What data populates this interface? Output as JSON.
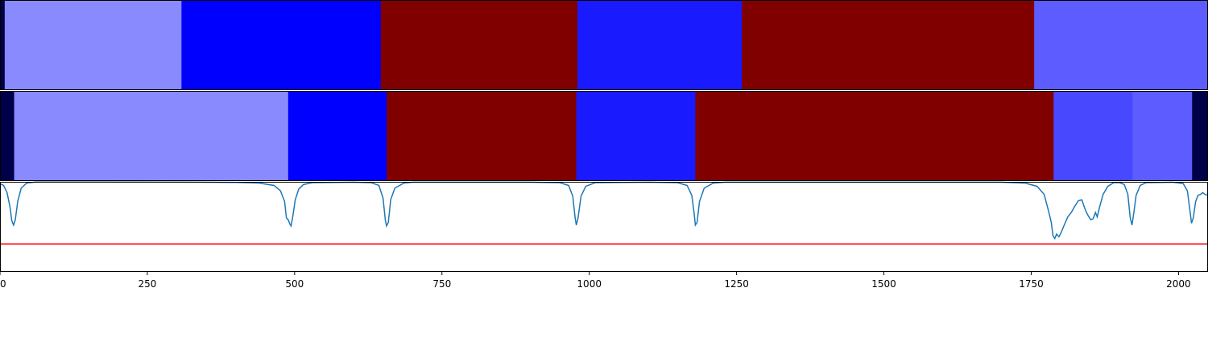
{
  "chart_data": [
    {
      "type": "heatmap",
      "panel": "top-segmentation",
      "xlim": [
        0,
        2050
      ],
      "segments": [
        {
          "start": 0,
          "end": 8,
          "color": "#000048"
        },
        {
          "start": 8,
          "end": 308,
          "color": "#8a8aff"
        },
        {
          "start": 308,
          "end": 646,
          "color": "#0000ff"
        },
        {
          "start": 646,
          "end": 980,
          "color": "#800000"
        },
        {
          "start": 980,
          "end": 1259,
          "color": "#1a1aff"
        },
        {
          "start": 1259,
          "end": 1755,
          "color": "#800000"
        },
        {
          "start": 1755,
          "end": 2050,
          "color": "#5c5cff"
        }
      ]
    },
    {
      "type": "heatmap",
      "panel": "middle-segmentation",
      "xlim": [
        0,
        2050
      ],
      "segments": [
        {
          "start": 0,
          "end": 24,
          "color": "#000048"
        },
        {
          "start": 24,
          "end": 489,
          "color": "#8a8aff"
        },
        {
          "start": 489,
          "end": 656,
          "color": "#0000ff"
        },
        {
          "start": 656,
          "end": 978,
          "color": "#800000"
        },
        {
          "start": 978,
          "end": 1180,
          "color": "#1a1aff"
        },
        {
          "start": 1180,
          "end": 1788,
          "color": "#800000"
        },
        {
          "start": 1788,
          "end": 1922,
          "color": "#4848ff"
        },
        {
          "start": 1922,
          "end": 2023,
          "color": "#5c5cff"
        },
        {
          "start": 2023,
          "end": 2050,
          "color": "#000048"
        }
      ]
    },
    {
      "type": "line",
      "panel": "boundary-score",
      "xlim": [
        0,
        2050
      ],
      "ylim": [
        0,
        1
      ],
      "grid": false,
      "x_ticks": [
        0,
        250,
        500,
        750,
        1000,
        1250,
        1500,
        1750,
        2000
      ],
      "x_tick_labels": [
        "0",
        "250",
        "500",
        "750",
        "1000",
        "1250",
        "1500",
        "1750",
        "2000"
      ],
      "threshold": {
        "value": 0.31,
        "color": "#ff0000"
      },
      "series": [
        {
          "color": "#1f77b4",
          "points": [
            [
              0,
              0.98
            ],
            [
              6,
              0.96
            ],
            [
              12,
              0.88
            ],
            [
              17,
              0.72
            ],
            [
              20,
              0.57
            ],
            [
              23,
              0.52
            ],
            [
              26,
              0.58
            ],
            [
              30,
              0.78
            ],
            [
              36,
              0.93
            ],
            [
              45,
              0.985
            ],
            [
              60,
              0.998
            ],
            [
              150,
              0.998
            ],
            [
              300,
              0.997
            ],
            [
              400,
              0.993
            ],
            [
              440,
              0.985
            ],
            [
              465,
              0.96
            ],
            [
              476,
              0.9
            ],
            [
              483,
              0.78
            ],
            [
              486,
              0.6
            ],
            [
              489,
              0.58
            ],
            [
              492,
              0.53
            ],
            [
              494,
              0.51
            ],
            [
              497,
              0.62
            ],
            [
              501,
              0.8
            ],
            [
              507,
              0.92
            ],
            [
              515,
              0.97
            ],
            [
              530,
              0.99
            ],
            [
              600,
              0.995
            ],
            [
              630,
              0.99
            ],
            [
              643,
              0.96
            ],
            [
              650,
              0.82
            ],
            [
              654,
              0.57
            ],
            [
              656,
              0.51
            ],
            [
              659,
              0.55
            ],
            [
              663,
              0.8
            ],
            [
              670,
              0.93
            ],
            [
              685,
              0.985
            ],
            [
              700,
              0.995
            ],
            [
              900,
              0.996
            ],
            [
              950,
              0.99
            ],
            [
              965,
              0.96
            ],
            [
              972,
              0.84
            ],
            [
              976,
              0.6
            ],
            [
              978,
              0.52
            ],
            [
              981,
              0.6
            ],
            [
              986,
              0.84
            ],
            [
              994,
              0.95
            ],
            [
              1010,
              0.99
            ],
            [
              1100,
              0.996
            ],
            [
              1150,
              0.99
            ],
            [
              1166,
              0.96
            ],
            [
              1174,
              0.85
            ],
            [
              1178,
              0.65
            ],
            [
              1180,
              0.52
            ],
            [
              1183,
              0.55
            ],
            [
              1187,
              0.78
            ],
            [
              1195,
              0.93
            ],
            [
              1210,
              0.985
            ],
            [
              1230,
              0.995
            ],
            [
              1700,
              0.995
            ],
            [
              1740,
              0.985
            ],
            [
              1760,
              0.95
            ],
            [
              1772,
              0.86
            ],
            [
              1780,
              0.66
            ],
            [
              1784,
              0.55
            ],
            [
              1787,
              0.4
            ],
            [
              1790,
              0.37
            ],
            [
              1793,
              0.42
            ],
            [
              1797,
              0.39
            ],
            [
              1801,
              0.44
            ],
            [
              1806,
              0.52
            ],
            [
              1812,
              0.61
            ],
            [
              1818,
              0.66
            ],
            [
              1824,
              0.73
            ],
            [
              1830,
              0.79
            ],
            [
              1836,
              0.8
            ],
            [
              1839,
              0.74
            ],
            [
              1843,
              0.67
            ],
            [
              1847,
              0.62
            ],
            [
              1851,
              0.58
            ],
            [
              1855,
              0.59
            ],
            [
              1859,
              0.66
            ],
            [
              1862,
              0.61
            ],
            [
              1866,
              0.72
            ],
            [
              1872,
              0.86
            ],
            [
              1880,
              0.95
            ],
            [
              1890,
              0.99
            ],
            [
              1900,
              0.99
            ],
            [
              1908,
              0.97
            ],
            [
              1914,
              0.86
            ],
            [
              1918,
              0.6
            ],
            [
              1921,
              0.52
            ],
            [
              1924,
              0.65
            ],
            [
              1928,
              0.85
            ],
            [
              1935,
              0.96
            ],
            [
              1945,
              0.99
            ],
            [
              1990,
              0.995
            ],
            [
              2008,
              0.98
            ],
            [
              2015,
              0.9
            ],
            [
              2019,
              0.7
            ],
            [
              2022,
              0.54
            ],
            [
              2025,
              0.6
            ],
            [
              2029,
              0.78
            ],
            [
              2033,
              0.85
            ],
            [
              2037,
              0.86
            ],
            [
              2041,
              0.88
            ],
            [
              2045,
              0.86
            ],
            [
              2050,
              0.85
            ]
          ]
        }
      ]
    }
  ]
}
